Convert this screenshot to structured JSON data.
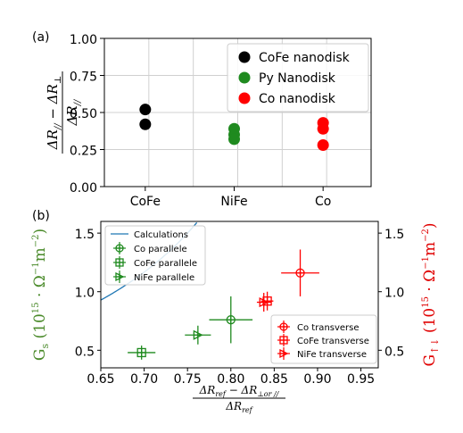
{
  "chart_data": [
    {
      "panel_label": "(a)",
      "type": "scatter",
      "categories": [
        "CoFe",
        "NiFe",
        "Co"
      ],
      "category_colors": [
        "#000000",
        "#3a7d1f",
        "#e8000b"
      ],
      "ylim": [
        0.0,
        1.0
      ],
      "yticks": [
        "0.00",
        "0.25",
        "0.50",
        "0.75",
        "1.00"
      ],
      "ylabel": "(ΔR∥ − ΔR⊥)/ΔR∥",
      "grid": true,
      "legend": {
        "placement": "top-right"
      },
      "series": [
        {
          "name": "CoFe nanodisk",
          "color": "#000000",
          "category": "CoFe",
          "values": [
            0.52,
            0.42
          ]
        },
        {
          "name": "Py Nanodisk",
          "color": "#1f8a1f",
          "category": "NiFe",
          "values": [
            0.39,
            0.35,
            0.32
          ]
        },
        {
          "name": "Co nanodisk",
          "color": "#ff0000",
          "category": "Co",
          "values": [
            0.43,
            0.39,
            0.28
          ]
        }
      ]
    },
    {
      "panel_label": "(b)",
      "type": "scatter",
      "xlim": [
        0.65,
        0.97
      ],
      "ylim": [
        0.35,
        1.6
      ],
      "xticks": [
        "0.65",
        "0.70",
        "0.75",
        "0.80",
        "0.85",
        "0.90",
        "0.95"
      ],
      "yticks": [
        "0.5",
        "1.0",
        "1.5"
      ],
      "xlabel": "(ΔRref − ΔR⊥ or ∥)/ΔRref",
      "ylabel_left": "Gs (10^15 · Ω^-1 m^-2)",
      "ylabel_right": "G↑↓ (10^15 · Ω^-1 m^-2)",
      "grid": false,
      "curve": {
        "name": "Calculations",
        "color": "#1f77b4",
        "x_range": [
          0.65,
          0.962
        ]
      },
      "legend_left": {
        "placement": "top-left",
        "entries": [
          "Calculations",
          "Co parallele",
          "CoFe parallele",
          "NiFe parallele"
        ]
      },
      "legend_right": {
        "placement": "bottom-right",
        "entries": [
          "Co transverse",
          "CoFe transverse",
          "NiFe transverse"
        ]
      },
      "series": [
        {
          "name": "Co parallele",
          "color": "#1f8a1f",
          "marker": "circle-plus",
          "points": [
            {
              "x": 0.8,
              "y": 0.76,
              "xerr": 0.025,
              "yerr": 0.2
            }
          ]
        },
        {
          "name": "CoFe parallele",
          "color": "#1f8a1f",
          "marker": "square-plus",
          "points": [
            {
              "x": 0.697,
              "y": 0.48,
              "xerr": 0.016,
              "yerr": 0.06
            }
          ]
        },
        {
          "name": "NiFe parallele",
          "color": "#1f8a1f",
          "marker": "triangle-right-plus",
          "points": [
            {
              "x": 0.762,
              "y": 0.63,
              "xerr": 0.015,
              "yerr": 0.08
            }
          ]
        },
        {
          "name": "Co transverse",
          "color": "#ff0000",
          "marker": "circle-plus",
          "points": [
            {
              "x": 0.88,
              "y": 1.16,
              "xerr": 0.022,
              "yerr": 0.2
            }
          ]
        },
        {
          "name": "CoFe transverse",
          "color": "#ff0000",
          "marker": "square-plus",
          "points": [
            {
              "x": 0.842,
              "y": 0.92,
              "xerr": 0.007,
              "yerr": 0.08
            }
          ]
        },
        {
          "name": "NiFe transverse",
          "color": "#ff0000",
          "marker": "triangle-right-plus",
          "points": [
            {
              "x": 0.838,
              "y": 0.91,
              "xerr": 0.008,
              "yerr": 0.08
            }
          ]
        }
      ]
    }
  ]
}
